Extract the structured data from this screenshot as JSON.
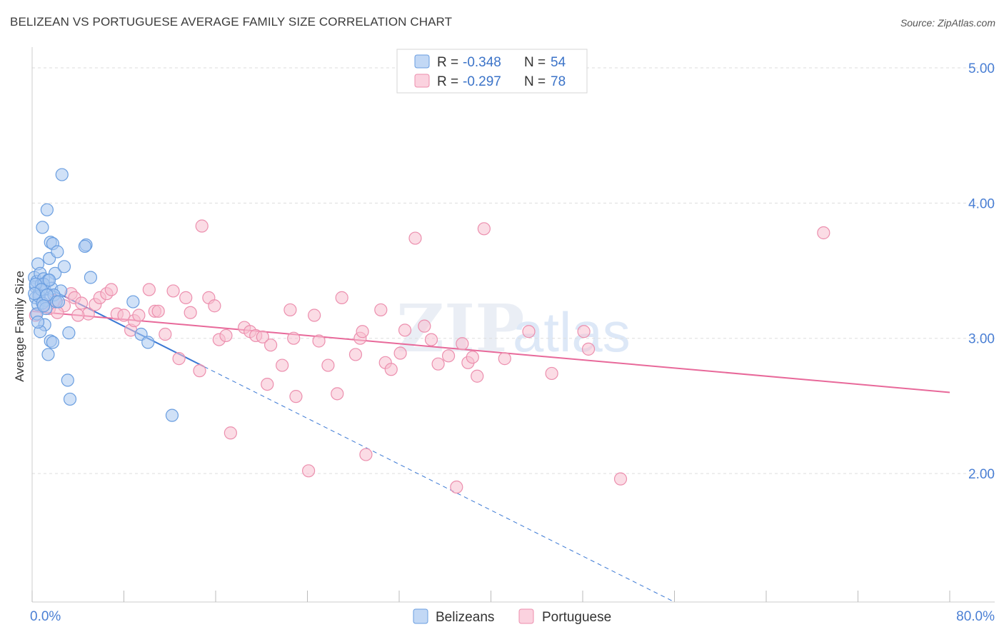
{
  "header": {
    "title": "BELIZEAN VS PORTUGUESE AVERAGE FAMILY SIZE CORRELATION CHART",
    "source": "Source: ZipAtlas.com"
  },
  "watermark": {
    "zip": "ZIP",
    "atlas": "atlas"
  },
  "colors": {
    "blue_fill": "#a9c8f0",
    "blue_stroke": "#6a9ee0",
    "blue_line": "#3a78d4",
    "pink_fill": "#f7bfd0",
    "pink_stroke": "#ec8fae",
    "pink_line": "#e8699a",
    "grid": "#dddddd",
    "tick_text": "#4a7fd4"
  },
  "chart_data": {
    "type": "scatter",
    "title": "BELIZEAN VS PORTUGUESE AVERAGE FAMILY SIZE CORRELATION CHART",
    "xlabel": "",
    "ylabel": "Average Family Size",
    "xlim": [
      0,
      80
    ],
    "ylim": [
      1.05,
      5.1
    ],
    "x_tick_labels": [
      "0.0%",
      "80.0%"
    ],
    "y_ticks": [
      2.0,
      3.0,
      4.0,
      5.0
    ],
    "y_tick_labels": [
      "2.00",
      "3.00",
      "4.00",
      "5.00"
    ],
    "grid": true,
    "legend_position": "top-center",
    "stats": [
      {
        "r_label": "R = ",
        "r_value": "-0.348",
        "n_label": "N = ",
        "n_value": "54"
      },
      {
        "r_label": "R = ",
        "r_value": "-0.297",
        "n_label": "N = ",
        "n_value": "78"
      }
    ],
    "series": [
      {
        "name": "Belizeans",
        "color": "#a9c8f0",
        "trend": {
          "x0": 0.0,
          "y0": 3.43,
          "x1": 15.0,
          "y1": 2.79,
          "dash_x1": 56.0,
          "dash_y1": 1.05
        },
        "points": [
          [
            0.2,
            3.45
          ],
          [
            0.3,
            3.38
          ],
          [
            0.4,
            3.42
          ],
          [
            0.5,
            3.55
          ],
          [
            0.6,
            3.33
          ],
          [
            0.7,
            3.48
          ],
          [
            0.3,
            3.3
          ],
          [
            0.5,
            3.25
          ],
          [
            0.8,
            3.4
          ],
          [
            1.0,
            3.44
          ],
          [
            1.1,
            3.36
          ],
          [
            1.2,
            3.28
          ],
          [
            0.9,
            3.82
          ],
          [
            1.3,
            3.95
          ],
          [
            1.5,
            3.59
          ],
          [
            1.6,
            3.71
          ],
          [
            1.8,
            3.7
          ],
          [
            2.0,
            3.48
          ],
          [
            1.4,
            3.43
          ],
          [
            1.7,
            3.37
          ],
          [
            2.2,
            3.64
          ],
          [
            2.5,
            3.35
          ],
          [
            2.8,
            3.53
          ],
          [
            1.9,
            3.32
          ],
          [
            1.1,
            3.1
          ],
          [
            1.6,
            2.98
          ],
          [
            1.4,
            2.88
          ],
          [
            0.7,
            3.05
          ],
          [
            3.2,
            3.04
          ],
          [
            3.1,
            2.69
          ],
          [
            3.3,
            2.55
          ],
          [
            2.6,
            4.21
          ],
          [
            4.7,
            3.69
          ],
          [
            5.1,
            3.45
          ],
          [
            4.6,
            3.68
          ],
          [
            8.8,
            3.27
          ],
          [
            9.5,
            3.03
          ],
          [
            10.1,
            2.97
          ],
          [
            12.2,
            2.43
          ],
          [
            0.6,
            3.31
          ],
          [
            0.9,
            3.26
          ],
          [
            1.2,
            3.22
          ],
          [
            0.4,
            3.18
          ],
          [
            2.1,
            3.27
          ],
          [
            1.0,
            3.4
          ],
          [
            0.3,
            3.4
          ],
          [
            0.8,
            3.36
          ],
          [
            1.5,
            3.43
          ],
          [
            1.8,
            2.97
          ],
          [
            0.5,
            3.12
          ],
          [
            1.3,
            3.32
          ],
          [
            2.3,
            3.27
          ],
          [
            0.2,
            3.33
          ],
          [
            1.0,
            3.24
          ]
        ]
      },
      {
        "name": "Portuguese",
        "color": "#f7bfd0",
        "trend": {
          "x0": 0.0,
          "y0": 3.2,
          "x1": 80.0,
          "y1": 2.6
        },
        "points": [
          [
            0.3,
            3.17
          ],
          [
            1.0,
            3.25
          ],
          [
            1.5,
            3.22
          ],
          [
            2.0,
            3.28
          ],
          [
            2.8,
            3.24
          ],
          [
            3.4,
            3.33
          ],
          [
            3.7,
            3.3
          ],
          [
            4.3,
            3.26
          ],
          [
            4.9,
            3.18
          ],
          [
            5.5,
            3.25
          ],
          [
            5.9,
            3.3
          ],
          [
            6.5,
            3.33
          ],
          [
            6.9,
            3.36
          ],
          [
            7.4,
            3.18
          ],
          [
            8.0,
            3.17
          ],
          [
            8.6,
            3.06
          ],
          [
            8.9,
            3.13
          ],
          [
            9.3,
            3.17
          ],
          [
            10.2,
            3.36
          ],
          [
            10.7,
            3.2
          ],
          [
            11.0,
            3.2
          ],
          [
            11.6,
            3.03
          ],
          [
            12.3,
            3.35
          ],
          [
            12.8,
            2.85
          ],
          [
            13.4,
            3.3
          ],
          [
            13.8,
            3.19
          ],
          [
            14.6,
            2.76
          ],
          [
            14.8,
            3.83
          ],
          [
            15.4,
            3.3
          ],
          [
            15.9,
            3.24
          ],
          [
            16.3,
            2.99
          ],
          [
            16.9,
            3.02
          ],
          [
            17.3,
            2.3
          ],
          [
            18.5,
            3.08
          ],
          [
            19.0,
            3.05
          ],
          [
            19.5,
            3.02
          ],
          [
            20.1,
            3.01
          ],
          [
            20.5,
            2.66
          ],
          [
            20.8,
            2.95
          ],
          [
            21.8,
            2.8
          ],
          [
            22.5,
            3.21
          ],
          [
            22.8,
            3.0
          ],
          [
            23.0,
            2.57
          ],
          [
            24.1,
            2.02
          ],
          [
            24.6,
            3.17
          ],
          [
            25.0,
            2.98
          ],
          [
            25.8,
            2.8
          ],
          [
            26.6,
            2.59
          ],
          [
            27.0,
            3.3
          ],
          [
            28.2,
            2.88
          ],
          [
            28.6,
            3.0
          ],
          [
            28.8,
            3.05
          ],
          [
            29.1,
            2.14
          ],
          [
            30.4,
            3.21
          ],
          [
            30.8,
            2.82
          ],
          [
            31.3,
            2.77
          ],
          [
            32.1,
            2.89
          ],
          [
            32.5,
            3.06
          ],
          [
            33.4,
            3.74
          ],
          [
            34.2,
            3.09
          ],
          [
            34.8,
            2.99
          ],
          [
            35.4,
            2.81
          ],
          [
            36.3,
            2.87
          ],
          [
            37.0,
            1.9
          ],
          [
            37.5,
            2.96
          ],
          [
            38.0,
            2.82
          ],
          [
            38.4,
            2.86
          ],
          [
            38.8,
            2.72
          ],
          [
            39.4,
            3.81
          ],
          [
            41.2,
            2.85
          ],
          [
            43.3,
            3.05
          ],
          [
            45.3,
            2.74
          ],
          [
            48.1,
            3.05
          ],
          [
            48.5,
            2.92
          ],
          [
            51.3,
            1.96
          ],
          [
            69.0,
            3.78
          ],
          [
            2.2,
            3.19
          ],
          [
            4.0,
            3.17
          ]
        ]
      }
    ]
  }
}
